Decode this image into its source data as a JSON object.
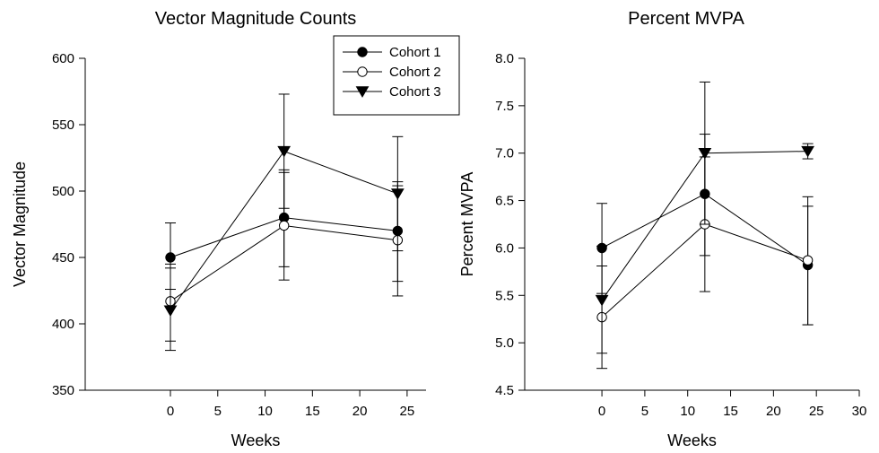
{
  "chart_data": [
    {
      "type": "line",
      "title": "Vector Magnitude Counts",
      "xlabel": "Weeks",
      "ylabel": "Vector Magnitude",
      "xlim": [
        -9,
        27
      ],
      "ylim": [
        350,
        600
      ],
      "xticks": [
        0,
        5,
        10,
        15,
        20,
        25
      ],
      "yticks": [
        350,
        400,
        450,
        500,
        550,
        600
      ],
      "grid": false,
      "legend": {
        "placement": "top-right",
        "entries": [
          {
            "name": "Cohort 1",
            "marker": "filled-circle"
          },
          {
            "name": "Cohort 2",
            "marker": "open-circle"
          },
          {
            "name": "Cohort 3",
            "marker": "filled-triangle-down"
          }
        ]
      },
      "x": [
        0,
        12,
        24
      ],
      "series": [
        {
          "name": "Cohort 1",
          "marker": "filled-circle",
          "values": [
            450,
            480,
            470
          ],
          "err_low": [
            426,
            443,
            432
          ],
          "err_high": [
            476,
            516,
            507
          ]
        },
        {
          "name": "Cohort 2",
          "marker": "open-circle",
          "values": [
            417,
            474,
            463
          ],
          "err_low": [
            387,
            433,
            421
          ],
          "err_high": [
            445,
            514,
            504
          ]
        },
        {
          "name": "Cohort 3",
          "marker": "filled-triangle-down",
          "values": [
            410,
            530,
            498
          ],
          "err_low": [
            380,
            487,
            455
          ],
          "err_high": [
            442,
            573,
            541
          ]
        }
      ]
    },
    {
      "type": "line",
      "title": "Percent MVPA",
      "xlabel": "Weeks",
      "ylabel": "Percent MVPA",
      "xlim": [
        -9,
        30
      ],
      "ylim": [
        4.5,
        8.0
      ],
      "xticks": [
        0,
        5,
        10,
        15,
        20,
        25,
        30
      ],
      "yticks": [
        4.5,
        5.0,
        5.5,
        6.0,
        6.5,
        7.0,
        7.5,
        8.0
      ],
      "grid": false,
      "x": [
        0,
        12,
        24
      ],
      "series": [
        {
          "name": "Cohort 1",
          "marker": "filled-circle",
          "values": [
            6.0,
            6.57,
            5.82
          ],
          "err_low": [
            5.52,
            5.92,
            5.19
          ],
          "err_high": [
            6.47,
            7.2,
            6.44
          ]
        },
        {
          "name": "Cohort 2",
          "marker": "open-circle",
          "values": [
            5.27,
            6.25,
            5.87
          ],
          "err_low": [
            4.73,
            5.54,
            5.19
          ],
          "err_high": [
            5.81,
            6.96,
            6.54
          ]
        },
        {
          "name": "Cohort 3",
          "marker": "filled-triangle-down",
          "values": [
            5.45,
            7.0,
            7.02
          ],
          "err_low": [
            4.89,
            6.25,
            6.94
          ],
          "err_high": [
            6.02,
            7.75,
            7.1
          ]
        }
      ]
    }
  ]
}
